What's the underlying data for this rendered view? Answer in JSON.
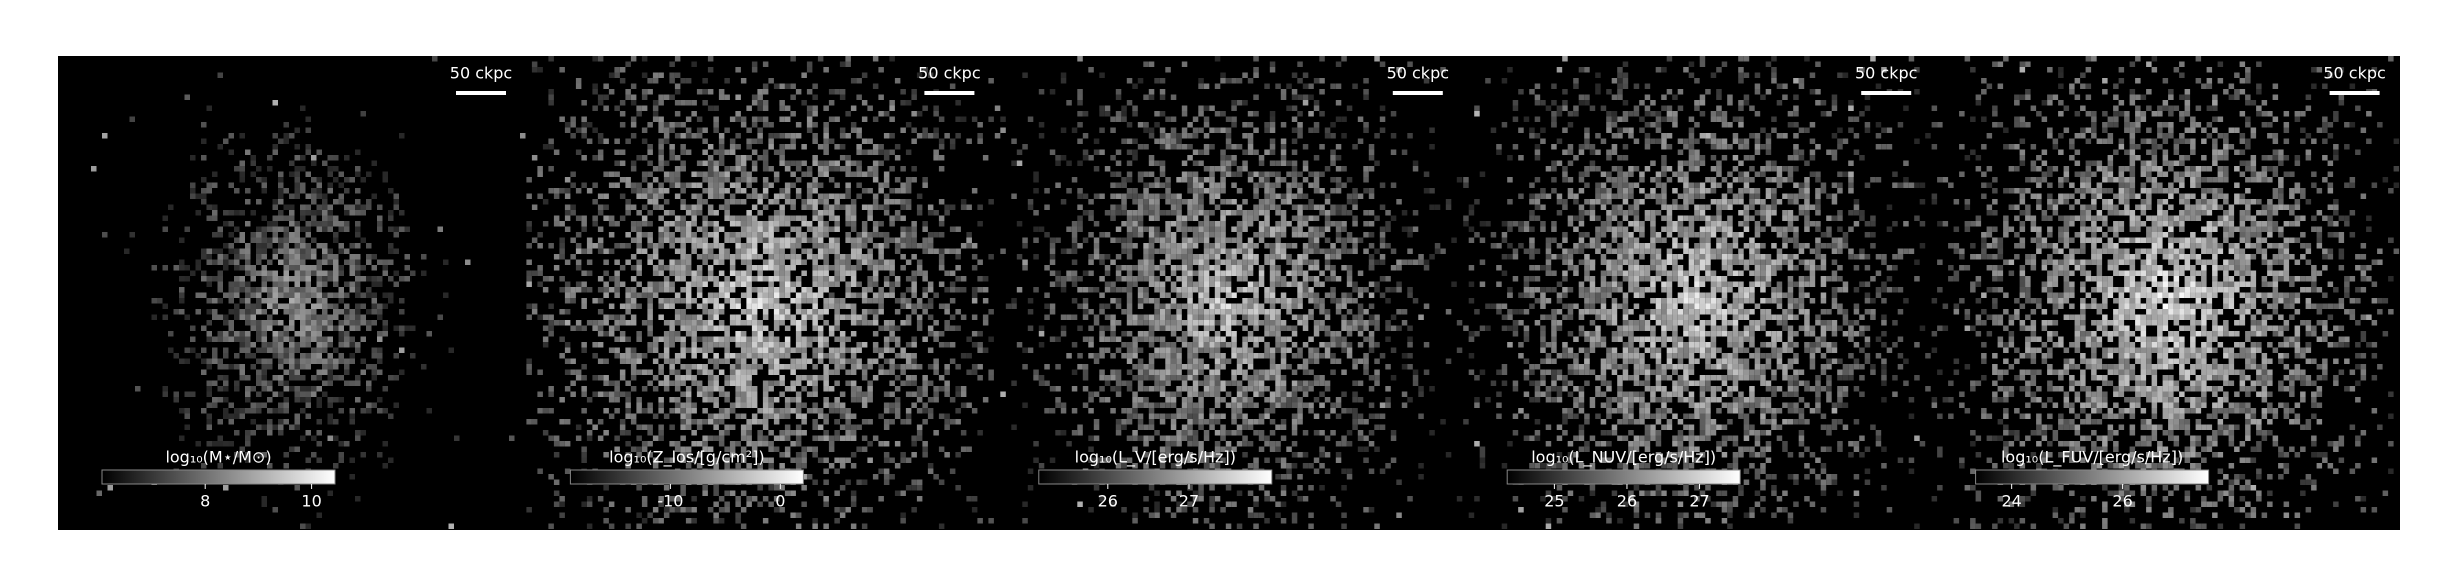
{
  "chart_data": [
    {
      "type": "image",
      "scale_label": "50 ckpc",
      "colorbar_label": "log₁₀(M⋆/M⊙)",
      "xlim": [
        6.06,
        10.44
      ],
      "xticks": [
        8,
        10
      ]
    },
    {
      "type": "image",
      "scale_label": "50 ckpc",
      "colorbar_label": "log₁₀(Z_los/[g/cm²])",
      "xlim": [
        -19.1,
        2.1
      ],
      "xticks": [
        -10,
        0
      ]
    },
    {
      "type": "image",
      "scale_label": "50 ckpc",
      "colorbar_label": "log₁₀(L_V/[erg/s/Hz])",
      "xlim": [
        25.15,
        28.02
      ],
      "xticks": [
        26,
        27
      ]
    },
    {
      "type": "image",
      "scale_label": "50 ckpc",
      "colorbar_label": "log₁₀(L_NUV/[erg/s/Hz])",
      "xlim": [
        24.35,
        27.56
      ],
      "xticks": [
        25,
        26,
        27
      ]
    },
    {
      "type": "image",
      "scale_label": "50 ckpc",
      "colorbar_label": "log₁₀(L_FUV/[erg/s/Hz])",
      "xlim": [
        23.35,
        27.55
      ],
      "xticks": [
        24,
        26
      ]
    }
  ]
}
